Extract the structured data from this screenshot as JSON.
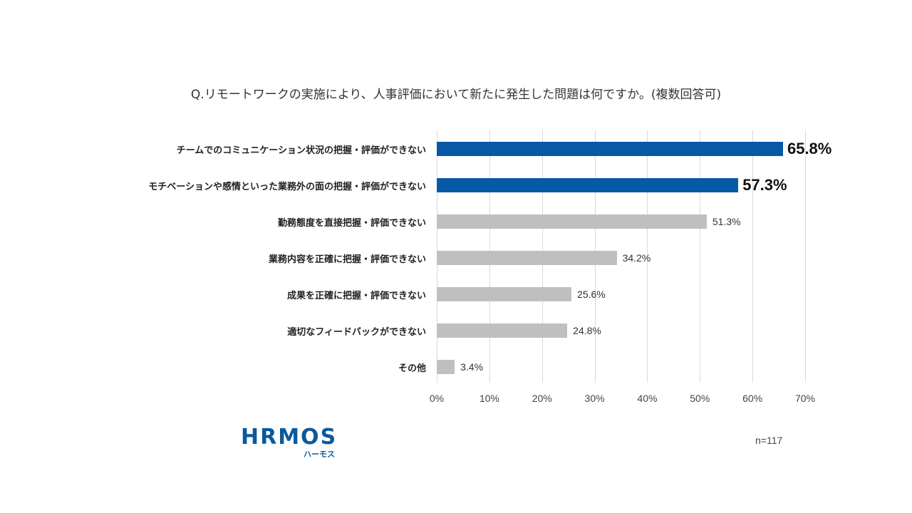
{
  "chart_data": {
    "type": "bar",
    "orientation": "horizontal",
    "title": "Q.リモートワークの実施により、人事評価において新たに発生した問題は何ですか。(複数回答可)",
    "categories": [
      "チームでのコミュニケーション状況の把握・評価ができない",
      "モチベーションや感情といった業務外の面の把握・評価ができない",
      "勤務態度を直接把握・評価できない",
      "業務内容を正確に把握・評価できない",
      "成果を正確に把握・評価できない",
      "適切なフィードバックができない",
      "その他"
    ],
    "values": [
      65.8,
      57.3,
      51.3,
      34.2,
      25.6,
      24.8,
      3.4
    ],
    "value_labels": [
      "65.8%",
      "57.3%",
      "51.3%",
      "34.2%",
      "25.6%",
      "24.8%",
      "3.4%"
    ],
    "highlight": [
      true,
      true,
      false,
      false,
      false,
      false,
      false
    ],
    "xlabel": "",
    "ylabel": "",
    "xlim": [
      0,
      70
    ],
    "x_ticks": [
      "0%",
      "10%",
      "20%",
      "30%",
      "40%",
      "50%",
      "60%",
      "70%"
    ],
    "grid": true,
    "legend": null,
    "colors": {
      "highlight": "#0759a8",
      "default": "#bfbfbf",
      "grid": "#d9d9d9"
    },
    "sample_size": "n=117"
  },
  "logo": {
    "main": "HRMOS",
    "sub": "ハーモス"
  }
}
